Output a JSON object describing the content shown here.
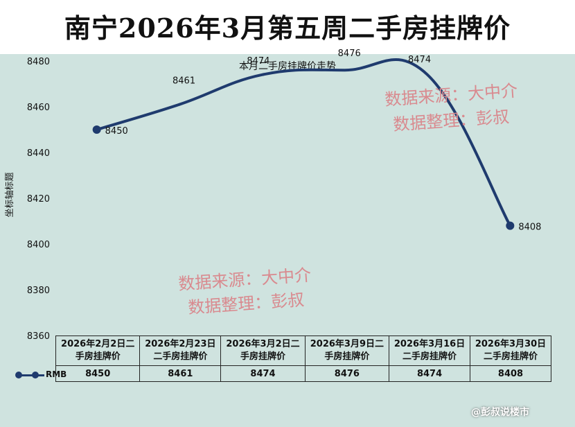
{
  "page": {
    "title": "南宁2026年3月第五周二手房挂牌价",
    "badge": "@彭叔说楼市"
  },
  "chart_data": {
    "type": "line",
    "title": "本月二手房挂牌价走势",
    "ylabel": "坐标轴标题",
    "ylim": [
      8360,
      8480
    ],
    "yticks": [
      8360,
      8380,
      8400,
      8420,
      8440,
      8460,
      8480
    ],
    "categories": [
      "2026年2月2日二手房挂牌价",
      "2026年2月23日二手房挂牌价",
      "2026年3月2日二手房挂牌价",
      "2026年3月9日二手房挂牌价",
      "2026年3月16日二手房挂牌价",
      "2026年3月30日二手房挂牌价"
    ],
    "series": [
      {
        "name": "RMB",
        "values": [
          8450,
          8461,
          8474,
          8476,
          8474,
          8408
        ]
      }
    ],
    "line_color": "#1f3b6e",
    "watermarks": [
      {
        "line1": "数据来源：大中介",
        "line2": "数据整理：彭叔"
      },
      {
        "line1": "数据来源：大中介",
        "line2": "数据整理：彭叔"
      }
    ]
  },
  "table": {
    "header_cells": [
      [
        "2026年2月2日二",
        "手房挂牌价"
      ],
      [
        "2026年2月23日",
        "二手房挂牌价"
      ],
      [
        "2026年3月2日二",
        "手房挂牌价"
      ],
      [
        "2026年3月9日二",
        "手房挂牌价"
      ],
      [
        "2026年3月16日",
        "二手房挂牌价"
      ],
      [
        "2026年3月30日",
        "二手房挂牌价"
      ]
    ],
    "legend_label": "RMB",
    "values": [
      "8450",
      "8461",
      "8474",
      "8476",
      "8474",
      "8408"
    ]
  }
}
